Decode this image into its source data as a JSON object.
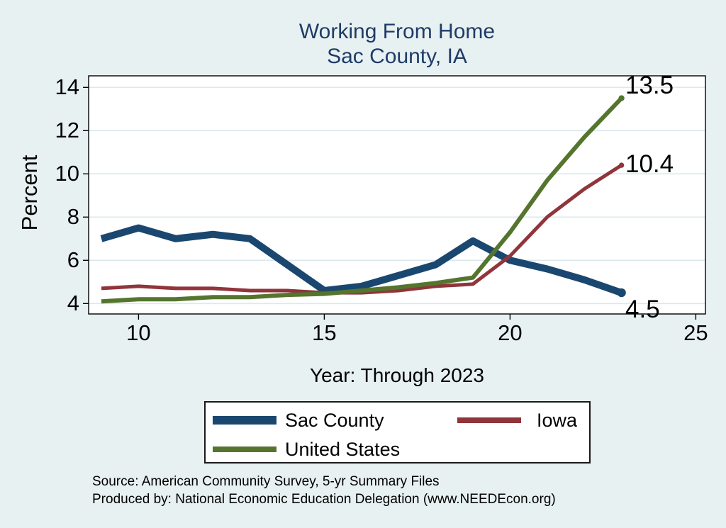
{
  "title": {
    "line1": "Working From Home",
    "line2": "Sac County, IA"
  },
  "y_axis": {
    "label": "Percent",
    "ticks": [
      4,
      6,
      8,
      10,
      12,
      14
    ]
  },
  "x_axis": {
    "label": "Year: Through 2023",
    "ticks": [
      10,
      15,
      20,
      25
    ]
  },
  "end_labels": {
    "united_states": "13.5",
    "iowa": "10.4",
    "sac_county": "4.5"
  },
  "legend": {
    "items": [
      {
        "label": "Sac County",
        "color": "#1a476f",
        "swatch_height": 12,
        "row": 0,
        "col": 0
      },
      {
        "label": "Iowa",
        "color": "#90353b",
        "swatch_height": 8,
        "row": 0,
        "col": 1
      },
      {
        "label": "United States",
        "color": "#55752f",
        "swatch_height": 8,
        "row": 1,
        "col": 0
      }
    ]
  },
  "source": {
    "line1": "Source: American Community Survey, 5-yr Summary Files",
    "line2": "Produced by: National Economic Education Delegation (www.NEEDEcon.org)"
  },
  "colors": {
    "background": "#e8f1f2",
    "plot_background": "#ffffff",
    "gridline": "#dce8ee",
    "axis": "#000000",
    "title_text": "#1f3c67",
    "sac_county": "#1a476f",
    "iowa": "#90353b",
    "united_states": "#55752f"
  },
  "chart_data": {
    "type": "line",
    "title": "Working From Home",
    "subtitle": "Sac County, IA",
    "xlabel": "Year: Through 2023",
    "ylabel": "Percent",
    "x": [
      9,
      10,
      11,
      12,
      13,
      14,
      15,
      16,
      17,
      18,
      19,
      20,
      21,
      22,
      23
    ],
    "x_tick_labels": [
      "10",
      "15",
      "20",
      "25"
    ],
    "y_tick_labels": [
      "4",
      "6",
      "8",
      "10",
      "12",
      "14"
    ],
    "xlim": [
      8.65,
      25.3
    ],
    "ylim": [
      3.5,
      14.55
    ],
    "grid": "horizontal",
    "legend_position": "bottom",
    "series": [
      {
        "name": "Sac County",
        "color": "#1a476f",
        "line_width": 10,
        "values": [
          7.0,
          7.5,
          7.0,
          7.2,
          7.0,
          5.8,
          4.6,
          4.8,
          5.3,
          5.8,
          6.9,
          6.0,
          5.6,
          5.1,
          4.5
        ],
        "end_value_label": "4.5"
      },
      {
        "name": "Iowa",
        "color": "#90353b",
        "line_width": 5,
        "values": [
          4.7,
          4.8,
          4.7,
          4.7,
          4.6,
          4.6,
          4.5,
          4.5,
          4.6,
          4.8,
          4.9,
          6.2,
          8.0,
          9.3,
          10.4
        ],
        "end_value_label": "10.4"
      },
      {
        "name": "United States",
        "color": "#55752f",
        "line_width": 6,
        "values": [
          4.1,
          4.2,
          4.2,
          4.3,
          4.3,
          4.4,
          4.45,
          4.6,
          4.75,
          4.95,
          5.2,
          7.3,
          9.7,
          11.7,
          13.5
        ],
        "end_value_label": "13.5"
      }
    ]
  }
}
